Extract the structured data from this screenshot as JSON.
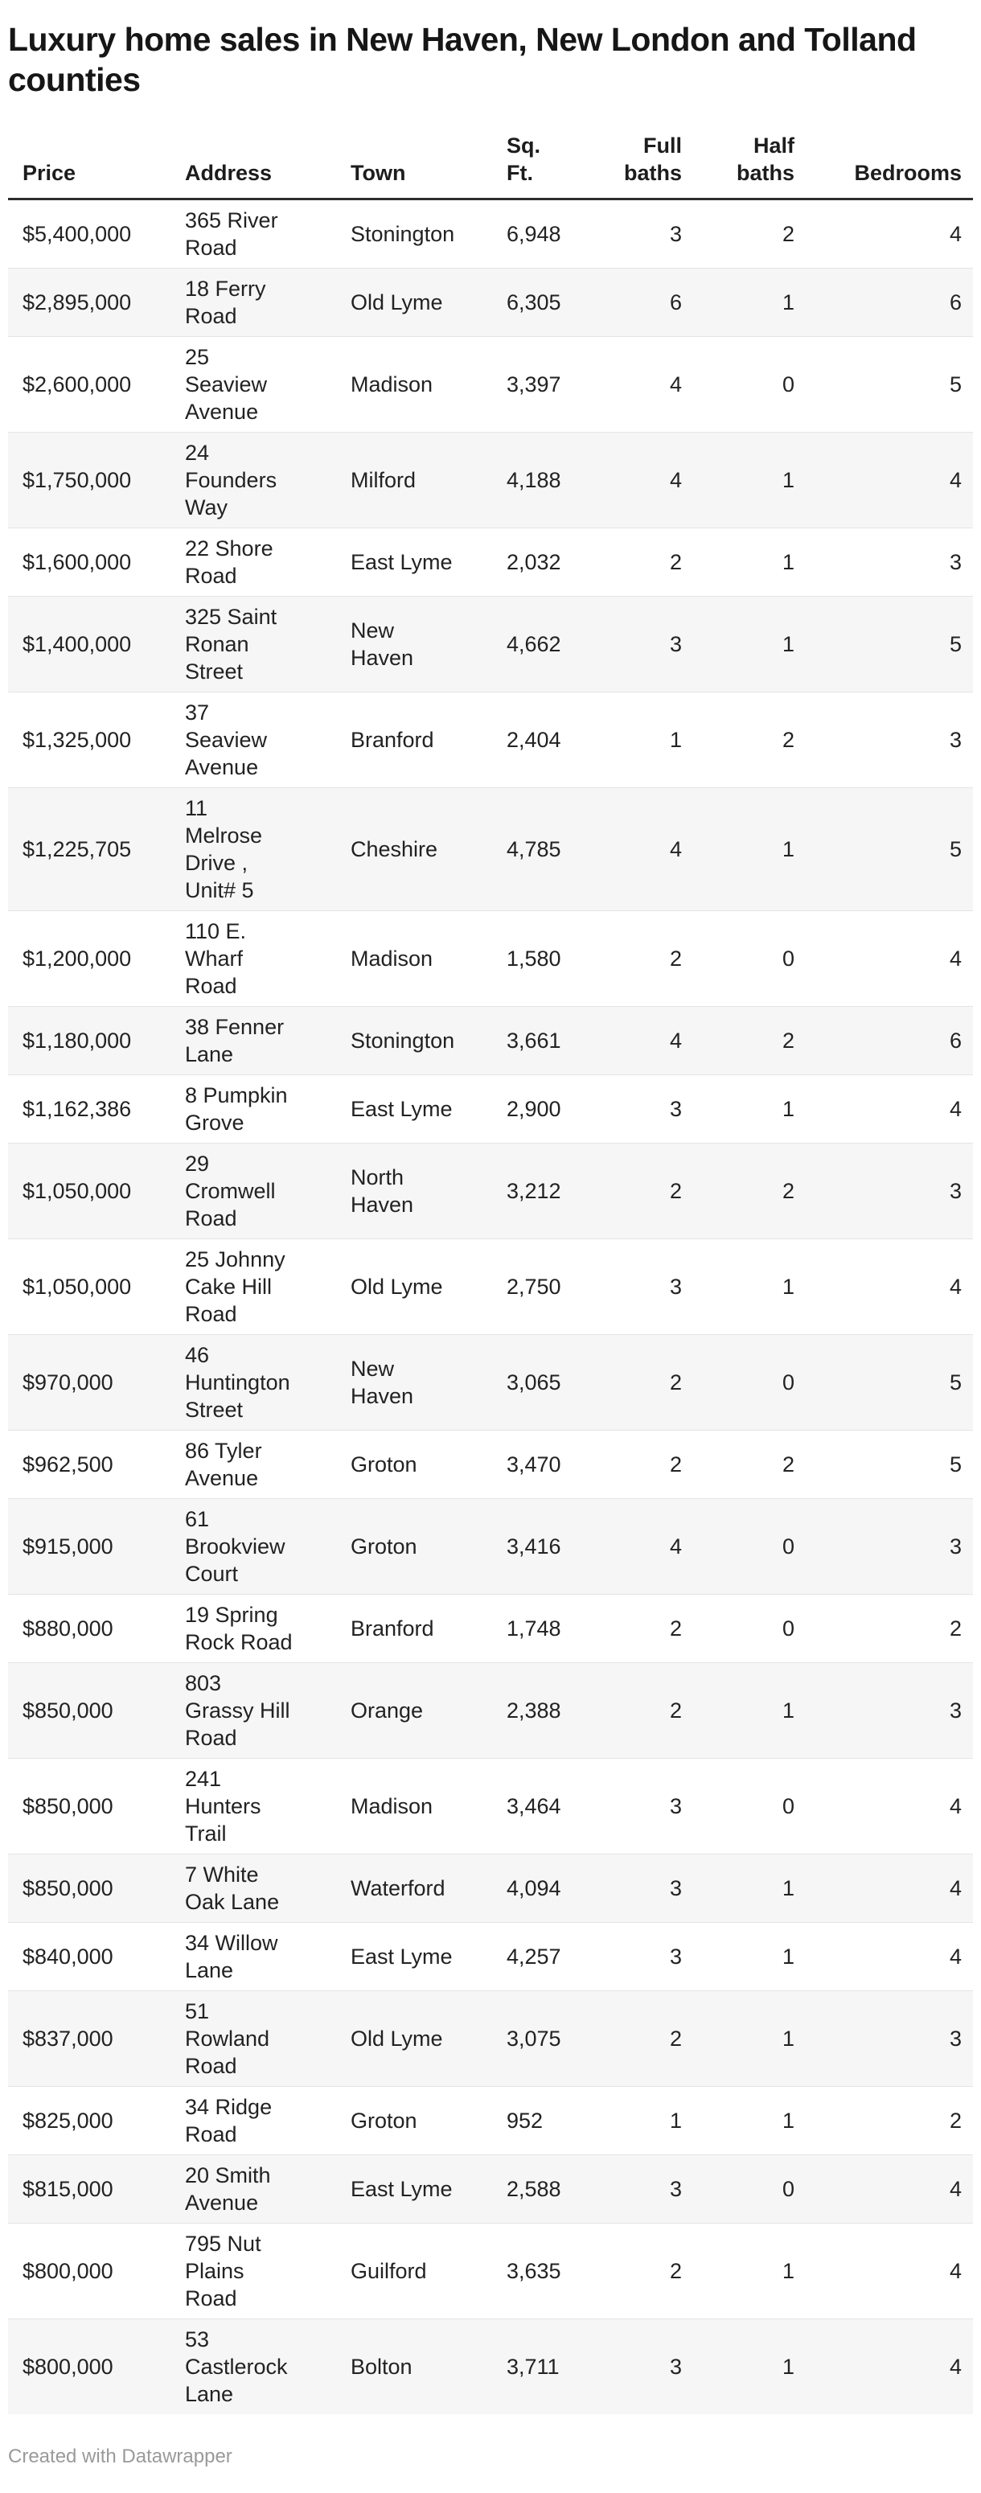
{
  "header": {
    "title": "Luxury home sales in New Haven, New London and Tolland\ncounties"
  },
  "chart_data": {
    "type": "table",
    "title": "Luxury home sales in New Haven, New London and Tolland counties",
    "columns": [
      {
        "label": "Price",
        "align": "left"
      },
      {
        "label": "Address",
        "align": "left"
      },
      {
        "label": "Town",
        "align": "left"
      },
      {
        "label": "Sq.\nFt.",
        "align": "left"
      },
      {
        "label": "Full\nbaths",
        "align": "right"
      },
      {
        "label": "Half\nbaths",
        "align": "right"
      },
      {
        "label": "Bedrooms",
        "align": "right"
      }
    ],
    "rows": [
      {
        "price": "$5,400,000",
        "address": "365 River\nRoad",
        "town": "Stonington",
        "sqft": "6,948",
        "full_baths": 3,
        "half_baths": 2,
        "bedrooms": 4
      },
      {
        "price": "$2,895,000",
        "address": "18 Ferry\nRoad",
        "town": "Old Lyme",
        "sqft": "6,305",
        "full_baths": 6,
        "half_baths": 1,
        "bedrooms": 6
      },
      {
        "price": "$2,600,000",
        "address": "25\nSeaview\nAvenue",
        "town": "Madison",
        "sqft": "3,397",
        "full_baths": 4,
        "half_baths": 0,
        "bedrooms": 5
      },
      {
        "price": "$1,750,000",
        "address": "24\nFounders\nWay",
        "town": "Milford",
        "sqft": "4,188",
        "full_baths": 4,
        "half_baths": 1,
        "bedrooms": 4
      },
      {
        "price": "$1,600,000",
        "address": "22 Shore\nRoad",
        "town": "East Lyme",
        "sqft": "2,032",
        "full_baths": 2,
        "half_baths": 1,
        "bedrooms": 3
      },
      {
        "price": "$1,400,000",
        "address": "325 Saint\nRonan\nStreet",
        "town": "New\nHaven",
        "sqft": "4,662",
        "full_baths": 3,
        "half_baths": 1,
        "bedrooms": 5
      },
      {
        "price": "$1,325,000",
        "address": "37\nSeaview\nAvenue",
        "town": "Branford",
        "sqft": "2,404",
        "full_baths": 1,
        "half_baths": 2,
        "bedrooms": 3
      },
      {
        "price": "$1,225,705",
        "address": "11\nMelrose\nDrive ,\nUnit# 5",
        "town": "Cheshire",
        "sqft": "4,785",
        "full_baths": 4,
        "half_baths": 1,
        "bedrooms": 5
      },
      {
        "price": "$1,200,000",
        "address": "110 E.\nWharf\nRoad",
        "town": "Madison",
        "sqft": "1,580",
        "full_baths": 2,
        "half_baths": 0,
        "bedrooms": 4
      },
      {
        "price": "$1,180,000",
        "address": "38 Fenner\nLane",
        "town": "Stonington",
        "sqft": "3,661",
        "full_baths": 4,
        "half_baths": 2,
        "bedrooms": 6
      },
      {
        "price": "$1,162,386",
        "address": "8 Pumpkin\nGrove",
        "town": "East Lyme",
        "sqft": "2,900",
        "full_baths": 3,
        "half_baths": 1,
        "bedrooms": 4
      },
      {
        "price": "$1,050,000",
        "address": "29\nCromwell\nRoad",
        "town": "North\nHaven",
        "sqft": "3,212",
        "full_baths": 2,
        "half_baths": 2,
        "bedrooms": 3
      },
      {
        "price": "$1,050,000",
        "address": "25 Johnny\nCake Hill\nRoad",
        "town": "Old Lyme",
        "sqft": "2,750",
        "full_baths": 3,
        "half_baths": 1,
        "bedrooms": 4
      },
      {
        "price": "$970,000",
        "address": "46\nHuntington\nStreet",
        "town": "New\nHaven",
        "sqft": "3,065",
        "full_baths": 2,
        "half_baths": 0,
        "bedrooms": 5
      },
      {
        "price": "$962,500",
        "address": "86 Tyler\nAvenue",
        "town": "Groton",
        "sqft": "3,470",
        "full_baths": 2,
        "half_baths": 2,
        "bedrooms": 5
      },
      {
        "price": "$915,000",
        "address": "61\nBrookview\nCourt",
        "town": "Groton",
        "sqft": "3,416",
        "full_baths": 4,
        "half_baths": 0,
        "bedrooms": 3
      },
      {
        "price": "$880,000",
        "address": "19 Spring\nRock Road",
        "town": "Branford",
        "sqft": "1,748",
        "full_baths": 2,
        "half_baths": 0,
        "bedrooms": 2
      },
      {
        "price": "$850,000",
        "address": "803\nGrassy Hill\nRoad",
        "town": "Orange",
        "sqft": "2,388",
        "full_baths": 2,
        "half_baths": 1,
        "bedrooms": 3
      },
      {
        "price": "$850,000",
        "address": "241\nHunters\nTrail",
        "town": "Madison",
        "sqft": "3,464",
        "full_baths": 3,
        "half_baths": 0,
        "bedrooms": 4
      },
      {
        "price": "$850,000",
        "address": "7 White\nOak Lane",
        "town": "Waterford",
        "sqft": "4,094",
        "full_baths": 3,
        "half_baths": 1,
        "bedrooms": 4
      },
      {
        "price": "$840,000",
        "address": "34 Willow\nLane",
        "town": "East Lyme",
        "sqft": "4,257",
        "full_baths": 3,
        "half_baths": 1,
        "bedrooms": 4
      },
      {
        "price": "$837,000",
        "address": "51\nRowland\nRoad",
        "town": "Old Lyme",
        "sqft": "3,075",
        "full_baths": 2,
        "half_baths": 1,
        "bedrooms": 3
      },
      {
        "price": "$825,000",
        "address": "34 Ridge\nRoad",
        "town": "Groton",
        "sqft": "952",
        "full_baths": 1,
        "half_baths": 1,
        "bedrooms": 2
      },
      {
        "price": "$815,000",
        "address": "20 Smith\nAvenue",
        "town": "East Lyme",
        "sqft": "2,588",
        "full_baths": 3,
        "half_baths": 0,
        "bedrooms": 4
      },
      {
        "price": "$800,000",
        "address": "795 Nut\nPlains\nRoad",
        "town": "Guilford",
        "sqft": "3,635",
        "full_baths": 2,
        "half_baths": 1,
        "bedrooms": 4
      },
      {
        "price": "$800,000",
        "address": "53\nCastlerock\nLane",
        "town": "Bolton",
        "sqft": "3,711",
        "full_baths": 3,
        "half_baths": 1,
        "bedrooms": 4
      }
    ]
  },
  "footer": {
    "credit": "Created with Datawrapper"
  },
  "colors": {
    "row_stripe": "#f6f6f6",
    "row_divider": "#e4e4e4",
    "header_rule": "#2d2d2d",
    "title_text": "#161616",
    "body_text": "#222222",
    "credit_text": "#9a9a9a"
  }
}
